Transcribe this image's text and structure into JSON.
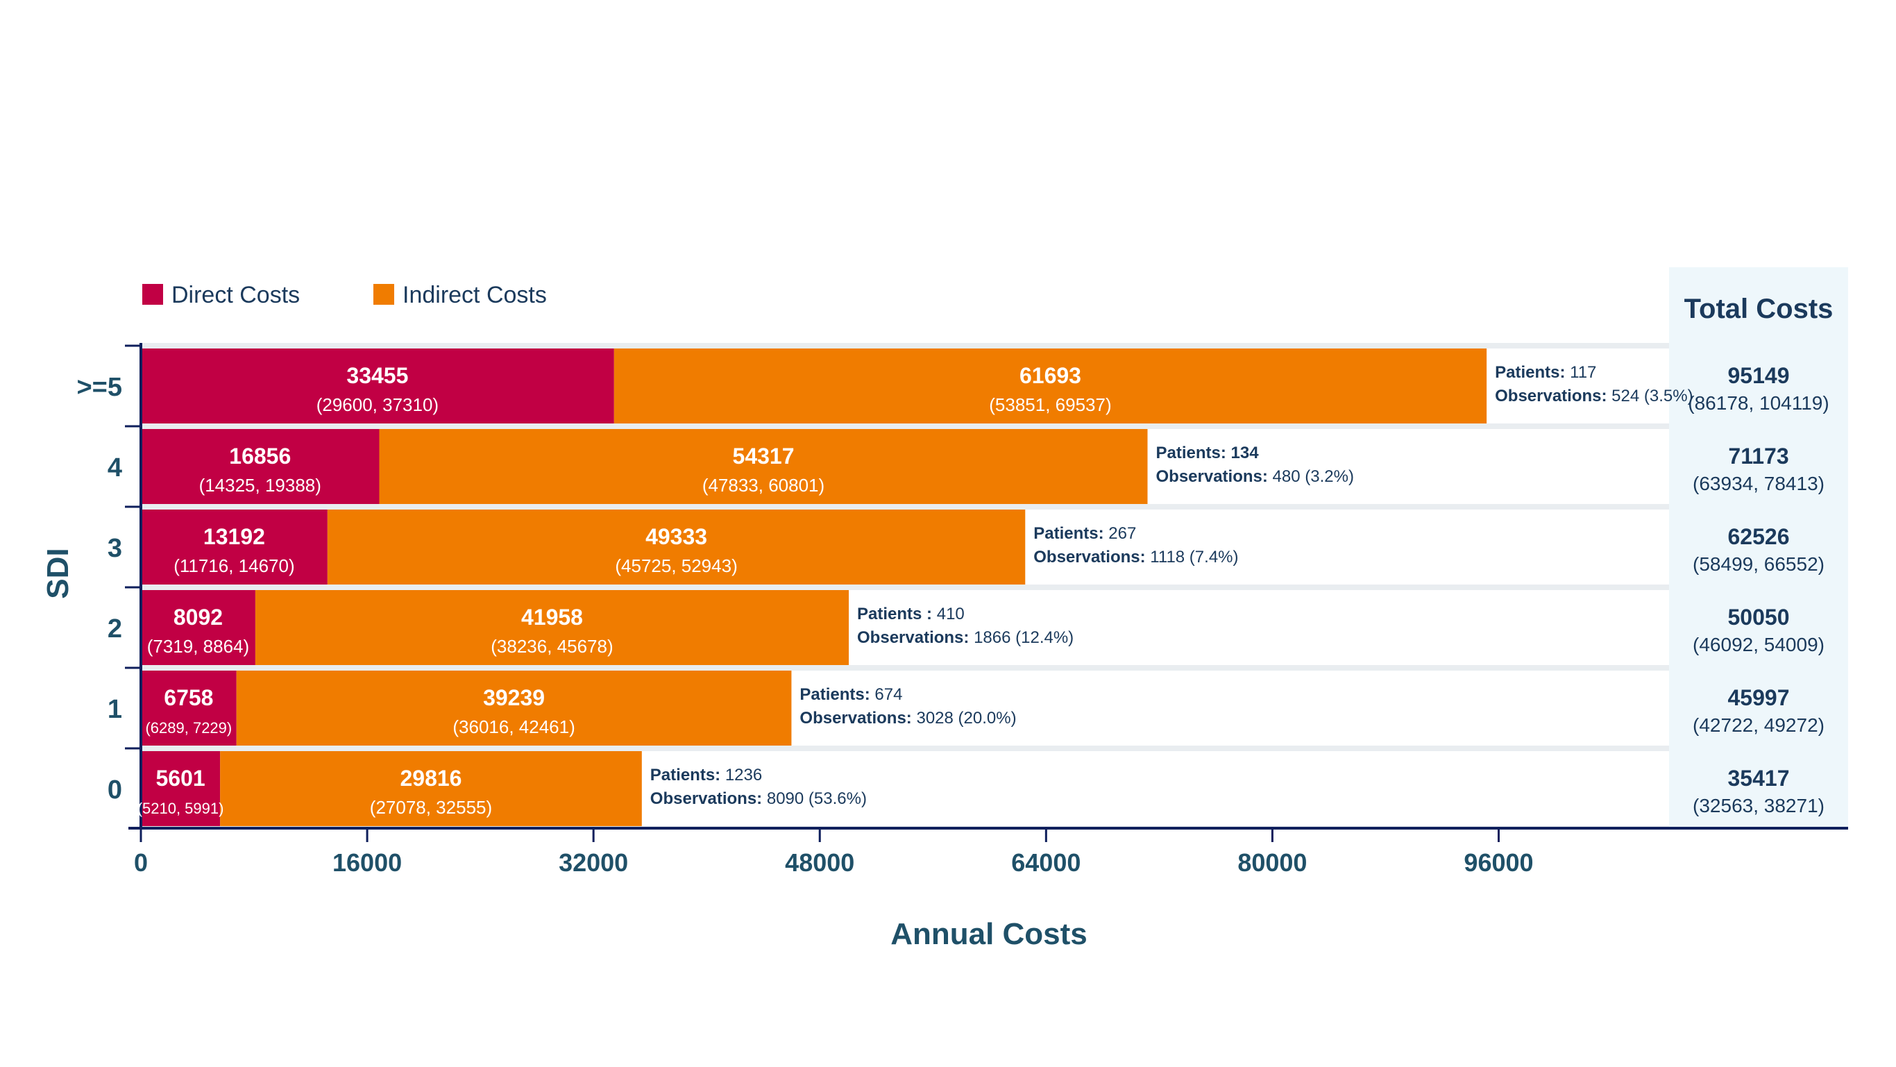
{
  "chart_data": {
    "type": "bar",
    "stacked": true,
    "orientation": "horizontal",
    "ylabel": "SDI",
    "xlabel": "Annual Costs",
    "xlim": [
      0,
      112000
    ],
    "xticks": [
      "0",
      "16000",
      "32000",
      "48000",
      "64000",
      "80000",
      "96000"
    ],
    "xtick_values": [
      0,
      16000,
      32000,
      48000,
      64000,
      80000,
      96000
    ],
    "legend": {
      "position": "top-left",
      "items": [
        "Direct Costs",
        "Indirect Costs"
      ]
    },
    "total_header": "Total Costs",
    "categories": [
      ">=5",
      "4",
      "3",
      "2",
      "1",
      "0"
    ],
    "series": [
      {
        "name": "Direct Costs",
        "color": "#C10044",
        "values": [
          33455,
          16856,
          13192,
          8092,
          6758,
          5601
        ],
        "ci": [
          "(29600, 37310)",
          "(14325, 19388)",
          "(11716, 14670)",
          "(7319, 8864)",
          "(6289, 7229)",
          "(5210, 5991)"
        ]
      },
      {
        "name": "Indirect Costs",
        "color": "#F07C00",
        "values": [
          61693,
          54317,
          49333,
          41958,
          39239,
          29816
        ],
        "ci": [
          "(53851, 69537)",
          "(47833, 60801)",
          "(45725, 52943)",
          "(38236, 45678)",
          "(36016, 42461)",
          "(27078, 32555)"
        ]
      }
    ],
    "annotations": [
      {
        "patients_label": "Patients:",
        "patients_value": "117",
        "obs_label": "Observations:",
        "obs_value": "524 (3.5%)"
      },
      {
        "patients_label": "Patients:",
        "patients_value": "134",
        "obs_label": "Observations:",
        "obs_value": "480 (3.2%)"
      },
      {
        "patients_label": "Patients:",
        "patients_value": "267",
        "obs_label": "Observations:",
        "obs_value": "1118 (7.4%)"
      },
      {
        "patients_label": "Patients :",
        "patients_value": "410",
        "obs_label": "Observations:",
        "obs_value": "1866 (12.4%)"
      },
      {
        "patients_label": "Patients:",
        "patients_value": "674",
        "obs_label": "Observations:",
        "obs_value": "3028 (20.0%)"
      },
      {
        "patients_label": "Patients:",
        "patients_value": "1236",
        "obs_label": "Observations:",
        "obs_value": "8090 (53.6%)"
      }
    ],
    "totals": [
      {
        "value": "95149",
        "ci": "(86178, 104119)"
      },
      {
        "value": "71173",
        "ci": "(63934, 78413)"
      },
      {
        "value": "62526",
        "ci": "(58499, 66552)"
      },
      {
        "value": "50050",
        "ci": "(46092, 54009)"
      },
      {
        "value": "45997",
        "ci": "(42722, 49272)"
      },
      {
        "value": "35417",
        "ci": "(32563, 38271)"
      }
    ]
  },
  "colors": {
    "text": "#1B3A5C",
    "axis_title": "#1F5068",
    "axis": "#0F1F5C",
    "total_panel": "#EEF7FB",
    "row_track": "#FFFFFF",
    "row_gap": "#E9EDF0"
  }
}
